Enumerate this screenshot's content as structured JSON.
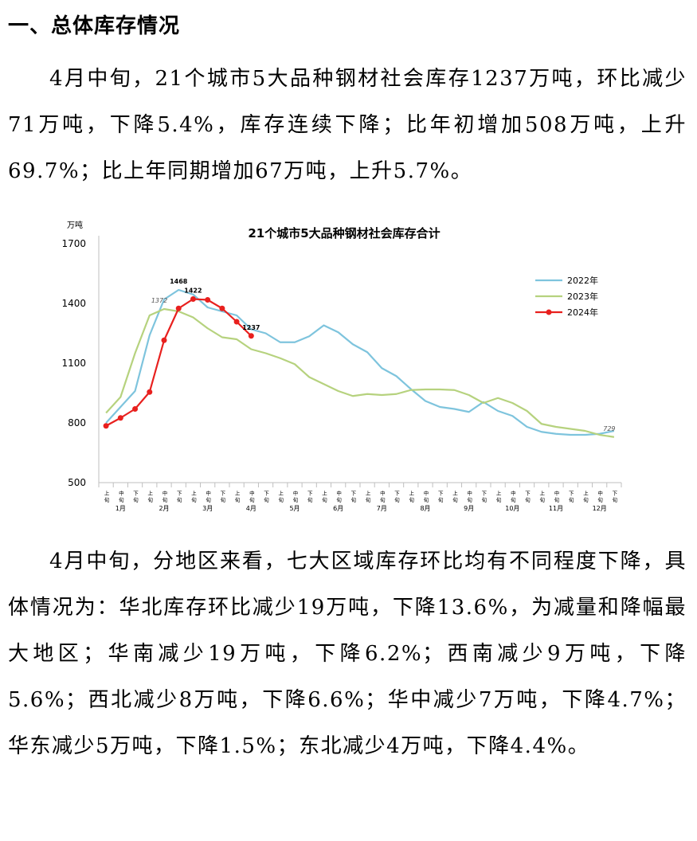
{
  "heading": "一、总体库存情况",
  "paragraphs": {
    "p1": "4月中旬，21个城市5大品种钢材社会库存1237万吨，环比减少71万吨，下降5.4%，库存连续下降；比年初增加508万吨，上升69.7%；比上年同期增加67万吨，上升5.7%。",
    "p2": "4月中旬，分地区来看，七大区域库存环比均有不同程度下降，具体情况为：华北库存环比减少19万吨，下降13.6%，为减量和降幅最大地区；华南减少19万吨，下降6.2%；西南减少9万吨，下降5.6%；西北减少8万吨，下降6.6%；华中减少7万吨，下降4.7%；华东减少5万吨，下降1.5%；东北减少4万吨，下降4.4%。"
  },
  "chart_data": {
    "type": "line",
    "title": "21个城市5大品种钢材社会库存合计",
    "unit_label": "万吨",
    "ylim": [
      500,
      1700
    ],
    "yticks": [
      500,
      800,
      1100,
      1400,
      1700
    ],
    "xtick_labels": [
      "上旬",
      "中旬",
      "下旬",
      "上旬",
      "中旬",
      "下旬",
      "上旬",
      "中旬",
      "下旬",
      "上旬",
      "中旬",
      "下旬",
      "上旬",
      "中旬",
      "下旬",
      "上旬",
      "中旬",
      "下旬",
      "上旬",
      "中旬",
      "下旬",
      "上旬",
      "中旬",
      "下旬",
      "上旬",
      "中旬",
      "下旬",
      "上旬",
      "中旬",
      "下旬",
      "上旬",
      "中旬",
      "下旬",
      "上旬",
      "中旬",
      "下旬"
    ],
    "months": [
      "1月",
      "2月",
      "3月",
      "4月",
      "5月",
      "6月",
      "7月",
      "8月",
      "9月",
      "10月",
      "11月",
      "12月"
    ],
    "grid": false,
    "legend_position": "top-right",
    "series": [
      {
        "name": "2022年",
        "color": "#7ec4dd",
        "markers": false,
        "values": [
          800,
          880,
          960,
          1240,
          1420,
          1468,
          1445,
          1380,
          1360,
          1340,
          1270,
          1250,
          1205,
          1205,
          1235,
          1290,
          1255,
          1195,
          1155,
          1075,
          1035,
          970,
          910,
          880,
          870,
          855,
          905,
          860,
          835,
          780,
          755,
          745,
          740,
          740,
          745,
          760
        ]
      },
      {
        "name": "2023年",
        "color": "#b6d27e",
        "markers": false,
        "values": [
          850,
          930,
          1150,
          1340,
          1372,
          1360,
          1330,
          1275,
          1230,
          1220,
          1170,
          1150,
          1125,
          1095,
          1030,
          995,
          960,
          935,
          945,
          940,
          945,
          965,
          968,
          968,
          965,
          940,
          900,
          925,
          900,
          860,
          795,
          780,
          770,
          760,
          740,
          729
        ]
      },
      {
        "name": "2024年",
        "color": "#e8201e",
        "markers": true,
        "values": [
          785,
          825,
          870,
          955,
          1215,
          1375,
          1422,
          1418,
          1375,
          1308,
          1237
        ]
      }
    ],
    "annotations": [
      {
        "text": "1468",
        "series": "2022年",
        "index": 5
      },
      {
        "text": "1372",
        "series": "2023年",
        "index": 4
      },
      {
        "text": "1422",
        "series": "2024年",
        "index": 6
      },
      {
        "text": "1237",
        "series": "2024年",
        "index": 10
      },
      {
        "text": "729",
        "series": "2023年",
        "index": 35
      }
    ]
  }
}
